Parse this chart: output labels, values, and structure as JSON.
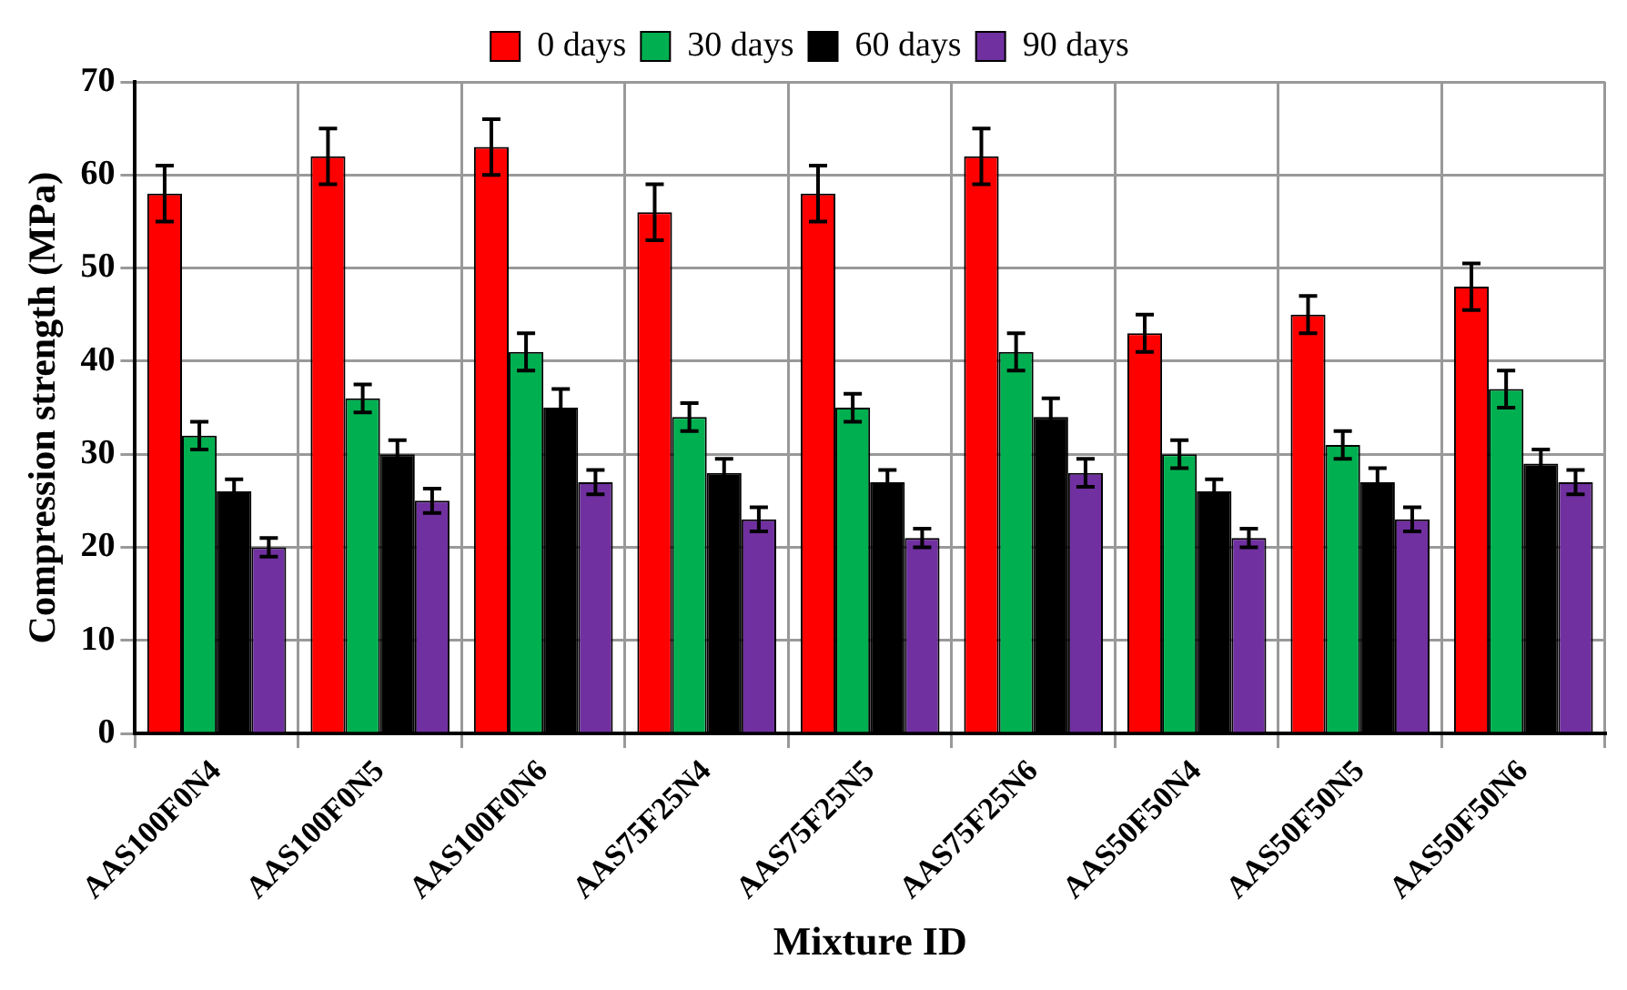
{
  "chart_data": {
    "type": "bar",
    "xlabel": "Mixture ID",
    "ylabel": "Compression strength (MPa)",
    "categories": [
      "AAS100F0N4",
      "AAS100F0N5",
      "AAS100F0N6",
      "AAS75F25N4",
      "AAS75F25N5",
      "AAS75F25N6",
      "AAS50F50N4",
      "AAS50F50N5",
      "AAS50F50N6"
    ],
    "series": [
      {
        "name": "0 days",
        "color": "#ff0000",
        "values": [
          58,
          62,
          63,
          56,
          58,
          62,
          43,
          45,
          48
        ],
        "errors": [
          3,
          3,
          3,
          3,
          3,
          3,
          2,
          2,
          2.5
        ]
      },
      {
        "name": "30 days",
        "color": "#00b050",
        "values": [
          32,
          36,
          41,
          34,
          35,
          41,
          30,
          31,
          37
        ],
        "errors": [
          1.5,
          1.5,
          2,
          1.5,
          1.5,
          2,
          1.5,
          1.5,
          2
        ]
      },
      {
        "name": "60 days",
        "color": "#000000",
        "values": [
          26,
          30,
          35,
          28,
          27,
          34,
          26,
          27,
          29
        ],
        "errors": [
          1.3,
          1.5,
          2,
          1.5,
          1.3,
          2,
          1.3,
          1.5,
          1.5
        ]
      },
      {
        "name": "90 days",
        "color": "#7030a0",
        "values": [
          20,
          25,
          27,
          23,
          21,
          28,
          21,
          23,
          27
        ],
        "errors": [
          1,
          1.3,
          1.3,
          1.3,
          1,
          1.5,
          1,
          1.3,
          1.3
        ]
      }
    ],
    "ylim": [
      0,
      70
    ],
    "yticks": [
      0,
      10,
      20,
      30,
      40,
      50,
      60,
      70
    ],
    "grid": true,
    "legend": "top"
  }
}
